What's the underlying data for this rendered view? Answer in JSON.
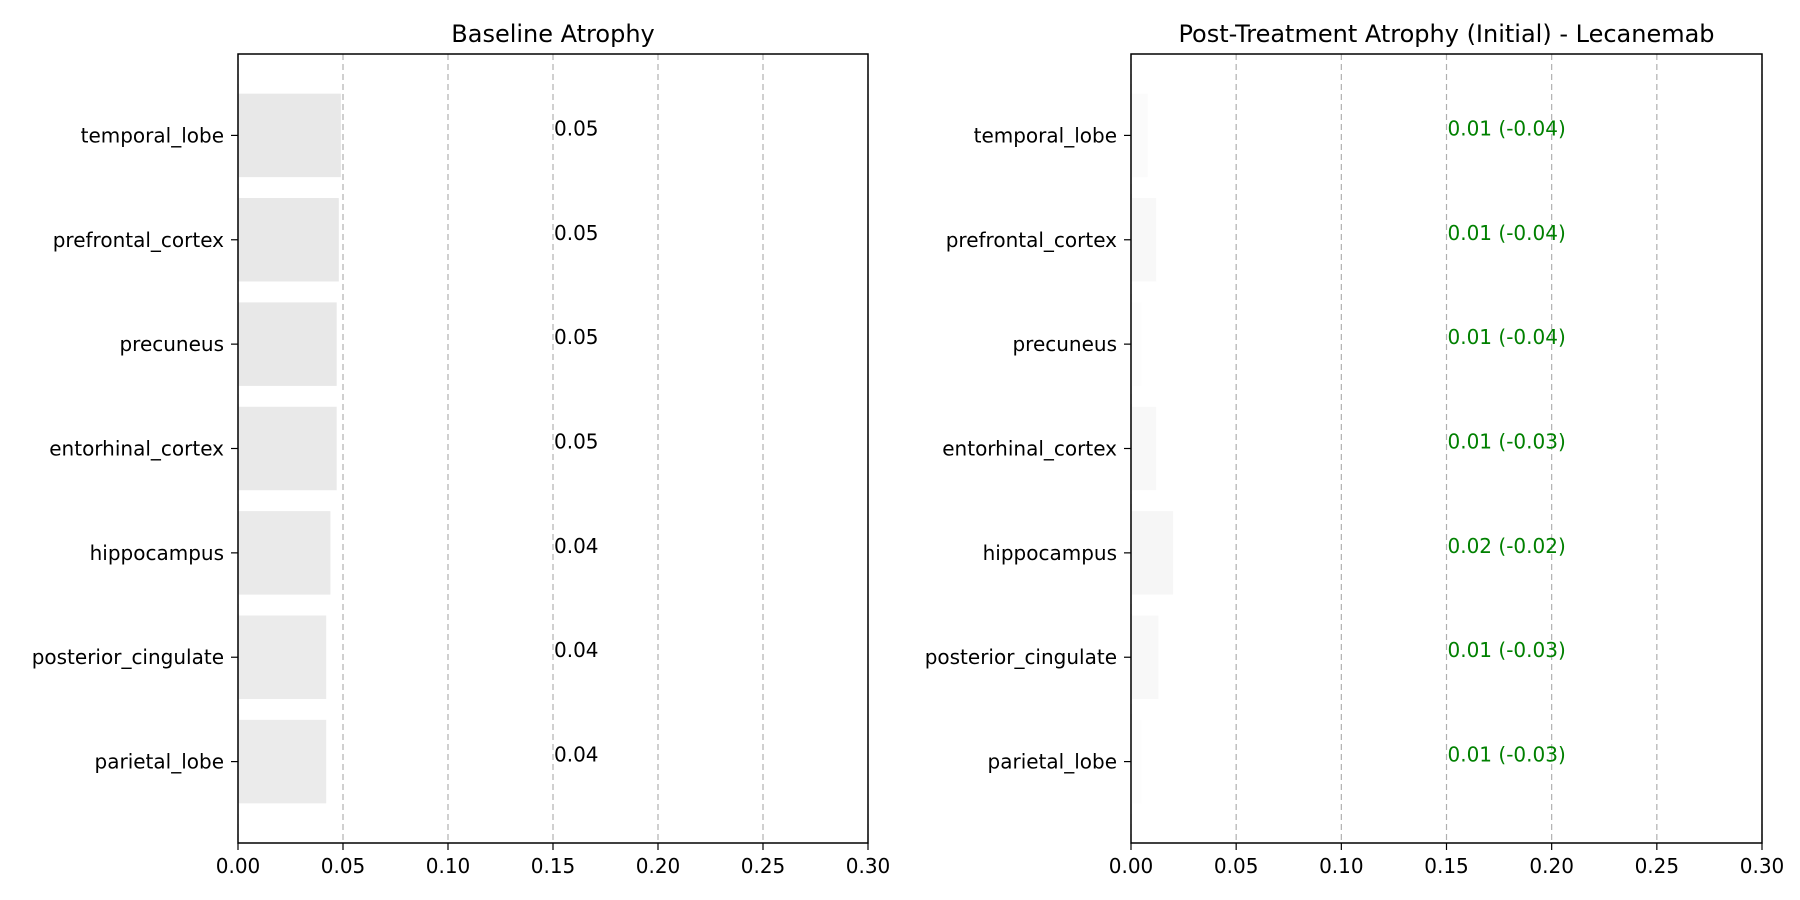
{
  "chart_data": [
    {
      "type": "bar",
      "orientation": "horizontal",
      "title": "Baseline Atrophy",
      "xlabel": "",
      "ylabel": "",
      "xlim": [
        0,
        0.3
      ],
      "x_ticks": [
        0.0,
        0.05,
        0.1,
        0.15,
        0.2,
        0.25,
        0.3
      ],
      "x_tick_labels": [
        "0.00",
        "0.05",
        "0.10",
        "0.15",
        "0.20",
        "0.25",
        "0.30"
      ],
      "grid": "x-dashed",
      "categories": [
        "temporal_lobe",
        "prefrontal_cortex",
        "precuneus",
        "entorhinal_cortex",
        "hippocampus",
        "posterior_cingulate",
        "parietal_lobe"
      ],
      "values": [
        0.049,
        0.048,
        0.047,
        0.047,
        0.044,
        0.042,
        0.042
      ],
      "bar_colors": [
        "#e8e8e8",
        "#e8e8e8",
        "#e8e8e8",
        "#e9e9e9",
        "#eaeaea",
        "#ebebeb",
        "#ebebeb"
      ],
      "value_labels": [
        "0.05",
        "0.05",
        "0.05",
        "0.05",
        "0.04",
        "0.04",
        "0.04"
      ],
      "value_label_color": "#000000"
    },
    {
      "type": "bar",
      "orientation": "horizontal",
      "title": "Post-Treatment Atrophy (Initial) - Lecanemab",
      "xlabel": "",
      "ylabel": "",
      "xlim": [
        0,
        0.3
      ],
      "x_ticks": [
        0.0,
        0.05,
        0.1,
        0.15,
        0.2,
        0.25,
        0.3
      ],
      "x_tick_labels": [
        "0.00",
        "0.05",
        "0.10",
        "0.15",
        "0.20",
        "0.25",
        "0.30"
      ],
      "grid": "x-dashed",
      "categories": [
        "temporal_lobe",
        "prefrontal_cortex",
        "precuneus",
        "entorhinal_cortex",
        "hippocampus",
        "posterior_cingulate",
        "parietal_lobe"
      ],
      "values": [
        0.008,
        0.012,
        0.005,
        0.012,
        0.02,
        0.013,
        0.005
      ],
      "bar_colors": [
        "#fbfbfb",
        "#f8f8f8",
        "#fdfdfd",
        "#f8f8f8",
        "#f6f6f6",
        "#f8f8f8",
        "#fdfdfd"
      ],
      "value_labels": [
        "0.01 (-0.04)",
        "0.01 (-0.04)",
        "0.01 (-0.04)",
        "0.01 (-0.03)",
        "0.02 (-0.02)",
        "0.01 (-0.03)",
        "0.01 (-0.03)"
      ],
      "value_label_color": "#008000"
    }
  ]
}
